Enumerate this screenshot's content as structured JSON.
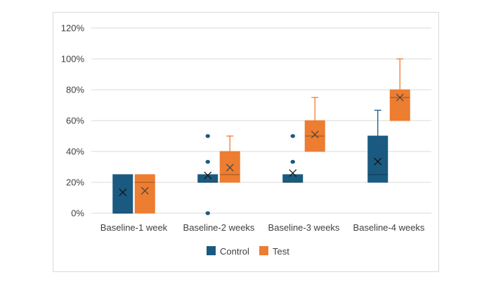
{
  "chart_data": {
    "type": "box",
    "title": "",
    "xlabel": "",
    "ylabel": "",
    "ylim": [
      0,
      120
    ],
    "y_ticks": [
      "0%",
      "20%",
      "40%",
      "60%",
      "80%",
      "100%",
      "120%"
    ],
    "y_tick_values": [
      0,
      20,
      40,
      60,
      80,
      100,
      120
    ],
    "grid": true,
    "legend_position": "bottom",
    "categories": [
      "Baseline-1 week",
      "Baseline-2 weeks",
      "Baseline-3 weeks",
      "Baseline-4 weeks"
    ],
    "series": [
      {
        "name": "Control",
        "color": "#1a5a80",
        "boxes": [
          {
            "min": 0,
            "q1": 0,
            "median": 0,
            "q3": 25,
            "max": 25,
            "mean": 13.5,
            "outliers": []
          },
          {
            "min": 20,
            "q1": 20,
            "median": 20,
            "q3": 25,
            "max": 25,
            "mean": 24.5,
            "outliers": [
              0,
              33.3,
              50
            ]
          },
          {
            "min": 20,
            "q1": 20,
            "median": 20,
            "q3": 25,
            "max": 25,
            "mean": 26,
            "outliers": [
              33.3,
              50
            ]
          },
          {
            "min": 20,
            "q1": 20,
            "median": 25,
            "q3": 50,
            "max": 66.7,
            "mean": 33.5,
            "outliers": []
          }
        ]
      },
      {
        "name": "Test",
        "color": "#ed7d31",
        "boxes": [
          {
            "min": 0,
            "q1": 0,
            "median": 20,
            "q3": 25,
            "max": 25,
            "mean": 14.5,
            "outliers": []
          },
          {
            "min": 20,
            "q1": 20,
            "median": 25,
            "q3": 40,
            "max": 50,
            "mean": 29.5,
            "outliers": []
          },
          {
            "min": 40,
            "q1": 40,
            "median": 50,
            "q3": 60,
            "max": 75,
            "mean": 51,
            "outliers": []
          },
          {
            "min": 60,
            "q1": 60,
            "median": 75,
            "q3": 80,
            "max": 100,
            "mean": 75,
            "outliers": []
          }
        ]
      }
    ]
  }
}
